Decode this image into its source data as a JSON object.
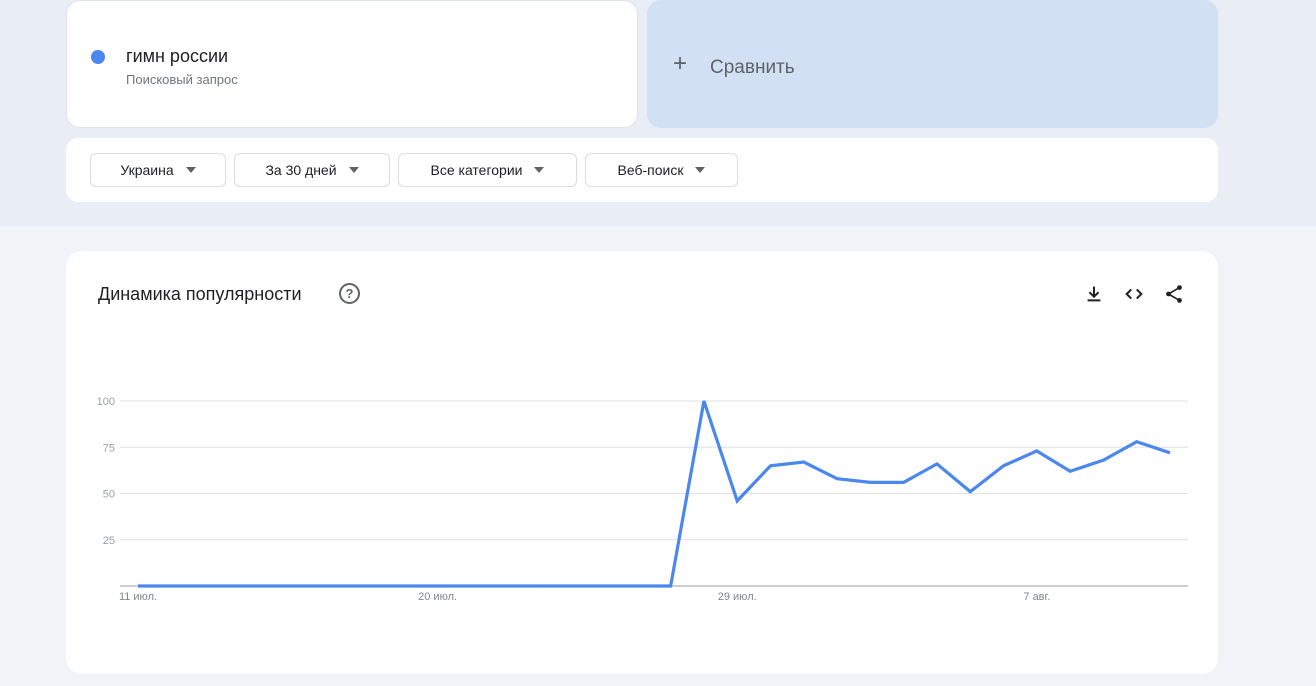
{
  "search_term": {
    "label": "гимн россии",
    "sublabel": "Поисковый запрос",
    "color": "#4a87ee"
  },
  "compare": {
    "label": "Сравнить",
    "icon": "plus-icon"
  },
  "filters": [
    {
      "label": "Украина"
    },
    {
      "label": "За 30 дней"
    },
    {
      "label": "Все категории"
    },
    {
      "label": "Веб-поиск"
    }
  ],
  "card": {
    "title": "Динамика популярности",
    "help_icon": "help-circle-icon",
    "help_glyph": "?",
    "actions": [
      "download-icon",
      "embed-code-icon",
      "share-icon"
    ]
  },
  "chart_data": {
    "type": "line",
    "title": "",
    "xlabel": "",
    "ylabel": "",
    "ylim": [
      0,
      100
    ],
    "yticks": [
      "25",
      "50",
      "75",
      "100"
    ],
    "grid": true,
    "x_tick_labels": [
      {
        "label": "11 июл.",
        "index": 0
      },
      {
        "label": "20 июл.",
        "index": 9
      },
      {
        "label": "29 июл.",
        "index": 18
      },
      {
        "label": "7 авг.",
        "index": 27
      }
    ],
    "x": [
      "11 июл.",
      "12 июл.",
      "13 июл.",
      "14 июл.",
      "15 июл.",
      "16 июл.",
      "17 июл.",
      "18 июл.",
      "19 июл.",
      "20 июл.",
      "21 июл.",
      "22 июл.",
      "23 июл.",
      "24 июл.",
      "25 июл.",
      "26 июл.",
      "27 июл.",
      "28 июл.",
      "29 июл.",
      "30 июл.",
      "31 июл.",
      "1 авг.",
      "2 авг.",
      "3 авг.",
      "4 авг.",
      "5 авг.",
      "6 авг.",
      "7 авг.",
      "8 авг.",
      "9 авг.",
      "10 авг.",
      "11 авг."
    ],
    "series": [
      {
        "color": "#4a87ee",
        "values": [
          0,
          0,
          0,
          0,
          0,
          0,
          0,
          0,
          0,
          0,
          0,
          0,
          0,
          0,
          0,
          0,
          0,
          100,
          46,
          65,
          67,
          58,
          56,
          56,
          66,
          51,
          65,
          73,
          62,
          68,
          78,
          72
        ]
      }
    ]
  }
}
